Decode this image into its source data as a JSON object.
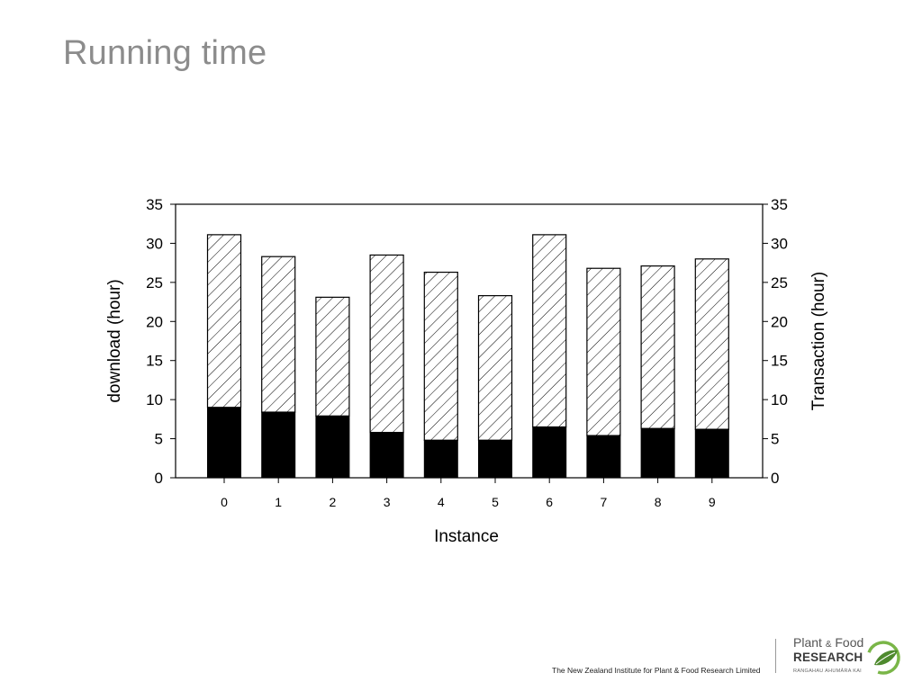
{
  "slide": {
    "title": "Running time",
    "footer_text": "The New Zealand Institute for Plant & Food Research Limited"
  },
  "logo": {
    "line1_a": "Plant",
    "line1_amp": "&",
    "line1_b": "Food",
    "line2": "RESEARCH",
    "line3": "RANGAHAU AHUMĀRA KAI",
    "colors": {
      "green": "#7ab648",
      "dark_green": "#4e8a2e",
      "text": "#555555"
    }
  },
  "chart_data": {
    "type": "bar",
    "stacked": true,
    "xlabel": "Instance",
    "ylabel_left": "download (hour)",
    "ylabel_right": "Transaction (hour)",
    "ylim": [
      0,
      35
    ],
    "yticks": [
      0,
      5,
      10,
      15,
      20,
      25,
      30,
      35
    ],
    "categories": [
      "0",
      "1",
      "2",
      "3",
      "4",
      "5",
      "6",
      "7",
      "8",
      "9"
    ],
    "series": [
      {
        "fill": "solid-black",
        "values": [
          9.0,
          8.4,
          7.9,
          5.8,
          4.8,
          4.8,
          6.5,
          5.4,
          6.3,
          6.2
        ]
      },
      {
        "fill": "diagonal-hatch",
        "values": [
          22.1,
          19.9,
          15.2,
          22.7,
          21.5,
          18.5,
          24.6,
          21.4,
          20.8,
          21.8
        ]
      }
    ],
    "grid": false,
    "legend": "none",
    "colors": {
      "solid": "#000000",
      "hatch": "#000000",
      "background": "#ffffff"
    }
  }
}
